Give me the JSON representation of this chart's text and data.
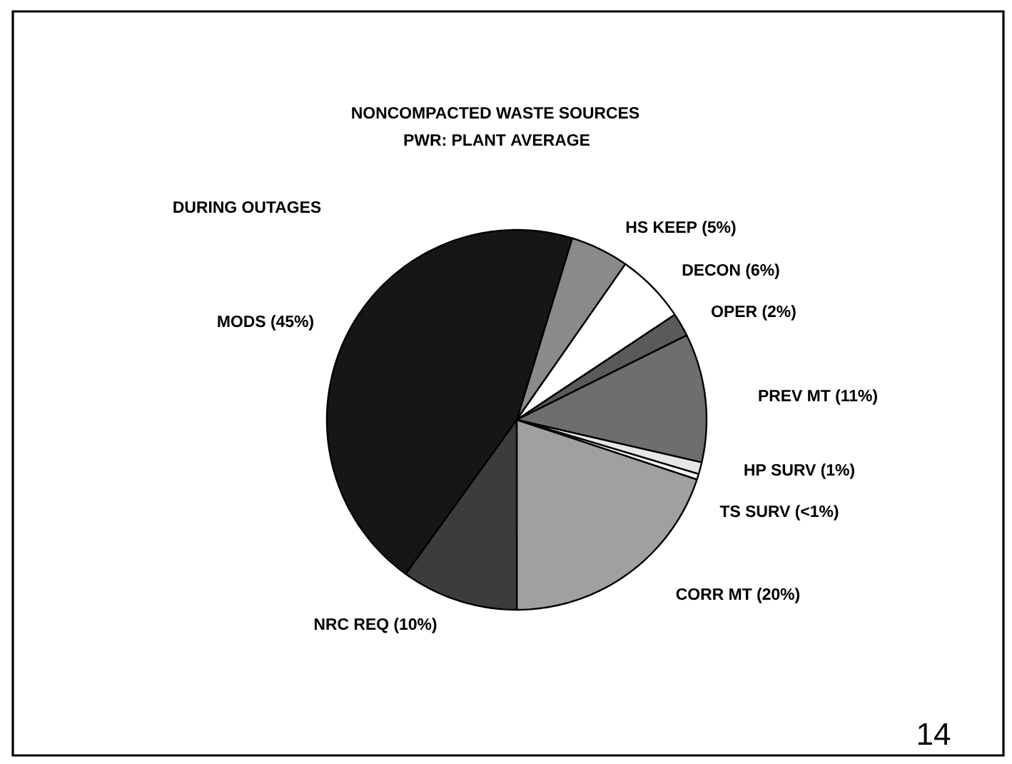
{
  "chart_data": {
    "type": "pie",
    "title": "NONCOMPACTED WASTE SOURCES",
    "subtitle": "PWR: PLANT AVERAGE",
    "categories": [
      "HS KEEP",
      "DECON",
      "OPER",
      "PREV MT",
      "HP SURV",
      "TS SURV",
      "CORR MT",
      "NRC REQ",
      "MODS"
    ],
    "values": [
      5,
      6,
      2,
      11,
      1,
      0.5,
      20,
      10,
      45
    ],
    "value_labels": [
      "(5%)",
      "(6%)",
      "(2%)",
      "(11%)",
      "(1%)",
      "(<1%)",
      "(20%)",
      "(10%)",
      "(45%)"
    ],
    "colors": [
      "#8a8a8a",
      "#ffffff",
      "#5a5a5a",
      "#6e6e6e",
      "#e6e6e6",
      "#f2f2f2",
      "#a0a0a0",
      "#3c3c3c",
      "#161616"
    ],
    "annotations": [
      "DURING OUTAGES",
      "14"
    ]
  }
}
